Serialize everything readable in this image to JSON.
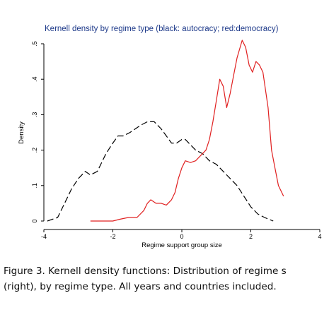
{
  "chart_data": {
    "type": "line",
    "title": "Kernell density by regime type (black: autocracy; red:democracy)",
    "xlabel": "Regime support group size",
    "ylabel": "Density",
    "xlim": [
      -4,
      4
    ],
    "ylim": [
      0,
      0.5
    ],
    "x_ticks": [
      "-4",
      "-2",
      "0",
      "2",
      "4"
    ],
    "y_ticks": [
      ".5",
      ".4",
      ".3",
      ".2",
      ".1",
      "0"
    ],
    "grid": false,
    "legend": "none",
    "series": [
      {
        "color": "#000000",
        "style": "dashed",
        "x": [
          -3.9,
          -3.6,
          -3.4,
          -3.2,
          -3.0,
          -2.8,
          -2.65,
          -2.45,
          -2.2,
          -2.0,
          -1.85,
          -1.7,
          -1.5,
          -1.35,
          -1.2,
          -1.0,
          -0.8,
          -0.6,
          -0.45,
          -0.3,
          -0.15,
          0.0,
          0.1,
          0.2,
          0.4,
          0.6,
          0.8,
          1.0,
          1.2,
          1.4,
          1.6,
          1.8,
          2.0,
          2.2,
          2.4,
          2.65
        ],
        "values": [
          0.0,
          0.01,
          0.05,
          0.09,
          0.12,
          0.14,
          0.13,
          0.14,
          0.19,
          0.22,
          0.24,
          0.24,
          0.25,
          0.26,
          0.27,
          0.28,
          0.28,
          0.26,
          0.24,
          0.22,
          0.22,
          0.23,
          0.23,
          0.22,
          0.2,
          0.19,
          0.17,
          0.16,
          0.14,
          0.12,
          0.1,
          0.07,
          0.04,
          0.02,
          0.01,
          0.0
        ]
      },
      {
        "color": "#e02020",
        "style": "solid",
        "x": [
          -2.65,
          -2.4,
          -2.2,
          -2.0,
          -1.8,
          -1.55,
          -1.3,
          -1.1,
          -1.0,
          -0.9,
          -0.75,
          -0.6,
          -0.45,
          -0.3,
          -0.2,
          -0.1,
          0.0,
          0.1,
          0.25,
          0.4,
          0.5,
          0.7,
          0.8,
          0.9,
          1.0,
          1.1,
          1.2,
          1.3,
          1.4,
          1.5,
          1.6,
          1.75,
          1.85,
          1.95,
          2.05,
          2.15,
          2.25,
          2.35,
          2.5,
          2.6,
          2.7,
          2.8,
          2.95
        ],
        "values": [
          0.0,
          0.0,
          0.0,
          0.0,
          0.005,
          0.01,
          0.01,
          0.03,
          0.05,
          0.06,
          0.05,
          0.05,
          0.045,
          0.06,
          0.08,
          0.12,
          0.15,
          0.17,
          0.165,
          0.17,
          0.18,
          0.2,
          0.23,
          0.28,
          0.34,
          0.4,
          0.38,
          0.32,
          0.36,
          0.41,
          0.46,
          0.51,
          0.49,
          0.44,
          0.42,
          0.45,
          0.44,
          0.42,
          0.32,
          0.2,
          0.15,
          0.1,
          0.07
        ]
      }
    ]
  },
  "caption": {
    "label": "Figure 3.",
    "line1_text": "Kernell density functions: Distribution of regime s",
    "line2_text": "(right), by regime type. All years and countries included."
  }
}
